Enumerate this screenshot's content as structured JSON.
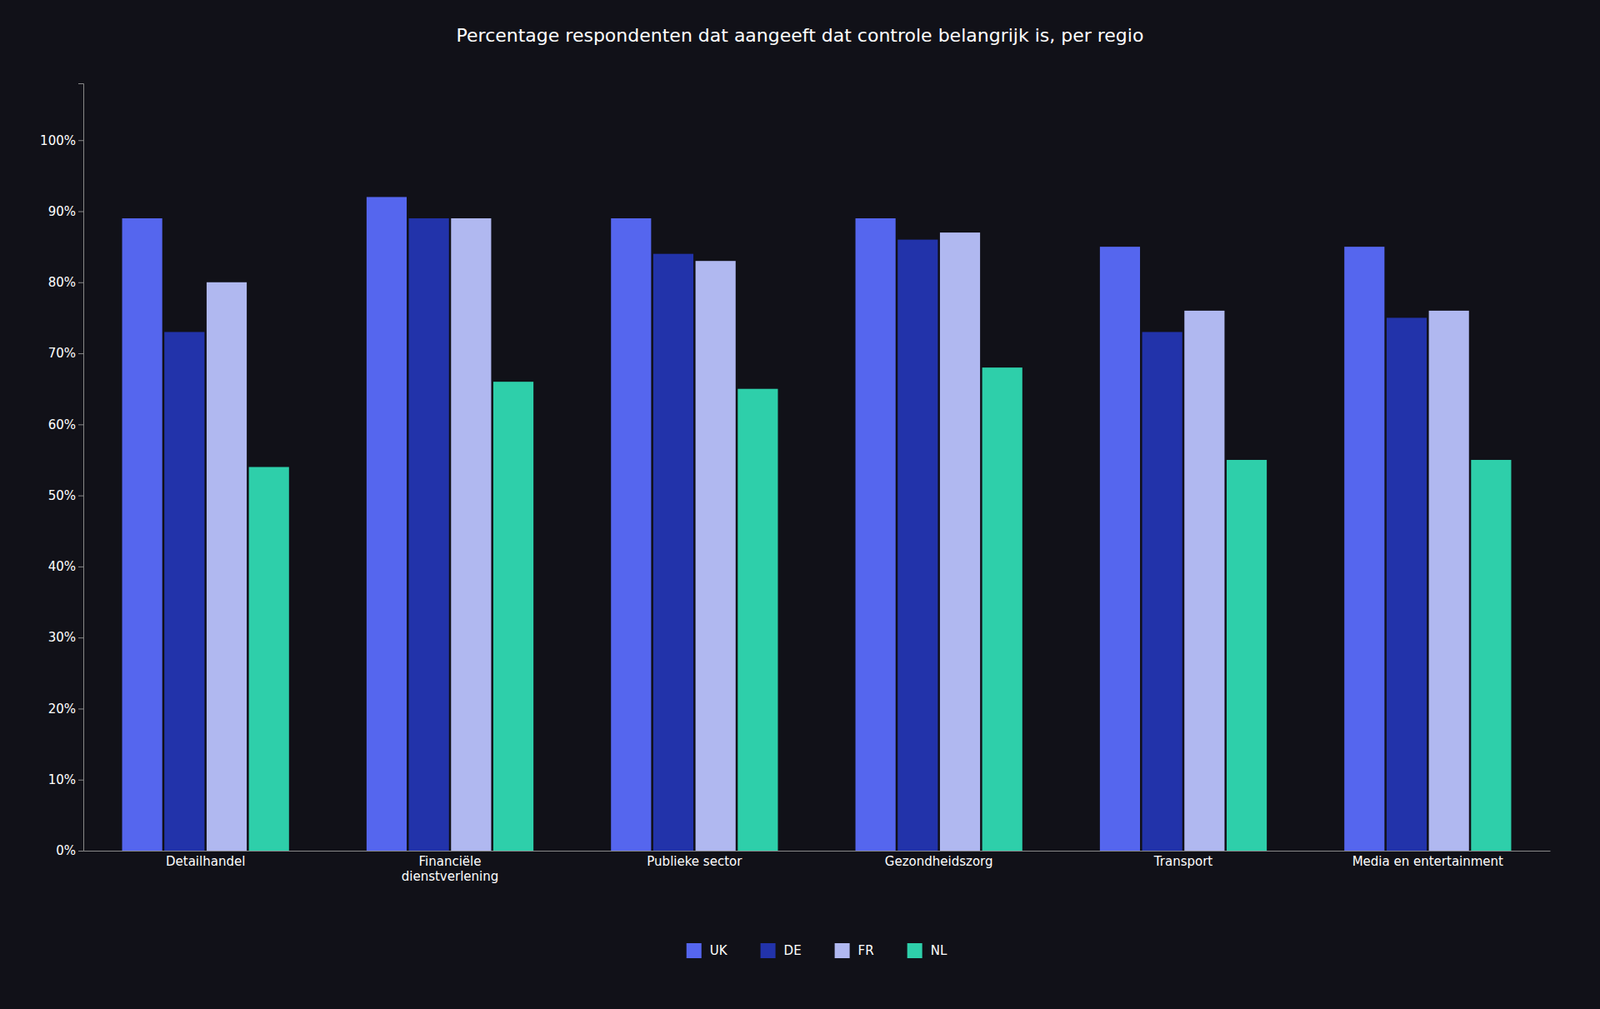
{
  "chart_data": {
    "type": "bar",
    "title": "Percentage respondenten dat aangeeft dat controle belangrijk is, per regio",
    "categories": [
      "Detailhandel",
      "Financiële\ndienstverlening",
      "Publieke sector",
      "Gezondheidszorg",
      "Transport",
      "Media en entertainment"
    ],
    "series": [
      {
        "name": "UK",
        "color": "#5566ee",
        "values": [
          0.89,
          0.92,
          0.89,
          0.89,
          0.85,
          0.85
        ]
      },
      {
        "name": "DE",
        "color": "#2233aa",
        "values": [
          0.73,
          0.89,
          0.84,
          0.86,
          0.73,
          0.75
        ]
      },
      {
        "name": "FR",
        "color": "#b0b8f0",
        "values": [
          0.8,
          0.89,
          0.83,
          0.87,
          0.76,
          0.76
        ]
      },
      {
        "name": "NL",
        "color": "#2ecfaa",
        "values": [
          0.54,
          0.66,
          0.65,
          0.68,
          0.55,
          0.55
        ]
      }
    ],
    "ylim": [
      0,
      1.08
    ],
    "yticks": [
      {
        "value": 0,
        "label": "0%"
      },
      {
        "value": 0.1,
        "label": "10%"
      },
      {
        "value": 0.2,
        "label": "20%"
      },
      {
        "value": 0.3,
        "label": "30%"
      },
      {
        "value": 0.4,
        "label": "40%"
      },
      {
        "value": 0.5,
        "label": "50%"
      },
      {
        "value": 0.6,
        "label": "60%"
      },
      {
        "value": 0.7,
        "label": "70%"
      },
      {
        "value": 0.8,
        "label": "80%"
      },
      {
        "value": 0.9,
        "label": "90%"
      },
      {
        "value": 1.0,
        "label": "100%"
      }
    ],
    "grid": false,
    "legend": "bottom"
  }
}
